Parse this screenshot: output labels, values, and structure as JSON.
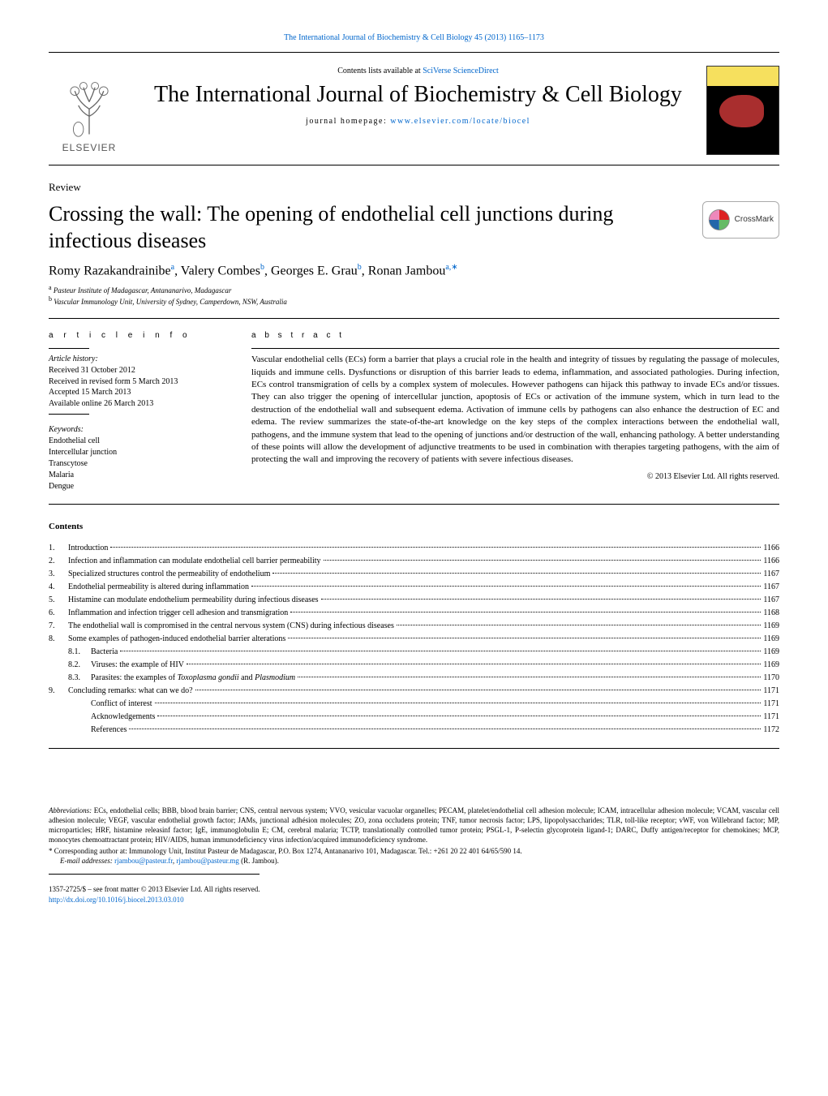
{
  "header": {
    "running_head": "The International Journal of Biochemistry & Cell Biology 45 (2013) 1165–1173",
    "contents_line_prefix": "Contents lists available at ",
    "contents_line_link": "SciVerse ScienceDirect",
    "journal_title": "The International Journal of Biochemistry & Cell Biology",
    "homepage_prefix": "journal homepage: ",
    "homepage_url": "www.elsevier.com/locate/biocel",
    "publisher_name": "ELSEVIER"
  },
  "crossmark": {
    "label": "CrossMark"
  },
  "article": {
    "type": "Review",
    "title": "Crossing the wall: The opening of endothelial cell junctions during infectious diseases",
    "authors_html": "Romy Razakandrainibe<sup>a</sup>, Valery Combes<sup>b</sup>, Georges E. Grau<sup>b</sup>, Ronan Jambou<sup>a,*</sup>",
    "authors": [
      {
        "name": "Romy Razakandrainibe",
        "aff": "a"
      },
      {
        "name": "Valery Combes",
        "aff": "b"
      },
      {
        "name": "Georges E. Grau",
        "aff": "b"
      },
      {
        "name": "Ronan Jambou",
        "aff": "a,*"
      }
    ],
    "affiliations": [
      {
        "mark": "a",
        "text": "Pasteur Institute of Madagascar, Antananarivo, Madagascar"
      },
      {
        "mark": "b",
        "text": "Vascular Immunology Unit, University of Sydney, Camperdown, NSW, Australia"
      }
    ]
  },
  "info": {
    "heading": "a r t i c l e   i n f o",
    "history_label": "Article history:",
    "history": [
      "Received 31 October 2012",
      "Received in revised form 5 March 2013",
      "Accepted 15 March 2013",
      "Available online 26 March 2013"
    ],
    "keywords_label": "Keywords:",
    "keywords": [
      "Endothelial cell",
      "Intercellular junction",
      "Transcytose",
      "Malaria",
      "Dengue"
    ]
  },
  "abstract": {
    "heading": "a b s t r a c t",
    "text": "Vascular endothelial cells (ECs) form a barrier that plays a crucial role in the health and integrity of tissues by regulating the passage of molecules, liquids and immune cells. Dysfunctions or disruption of this barrier leads to edema, inflammation, and associated pathologies. During infection, ECs control transmigration of cells by a complex system of molecules. However pathogens can hijack this pathway to invade ECs and/or tissues. They can also trigger the opening of intercellular junction, apoptosis of ECs or activation of the immune system, which in turn lead to the destruction of the endothelial wall and subsequent edema. Activation of immune cells by pathogens can also enhance the destruction of EC and edema. The review summarizes the state-of-the-art knowledge on the key steps of the complex interactions between the endothelial wall, pathogens, and the immune system that lead to the opening of junctions and/or destruction of the wall, enhancing pathology. A better understanding of these points will allow the development of adjunctive treatments to be used in combination with therapies targeting pathogens, with the aim of protecting the wall and improving the recovery of patients with severe infectious diseases.",
    "copyright": "© 2013 Elsevier Ltd. All rights reserved."
  },
  "contents": {
    "heading": "Contents",
    "items": [
      {
        "num": "1.",
        "title": "Introduction",
        "page": "1166"
      },
      {
        "num": "2.",
        "title": "Infection and inflammation can modulate endothelial cell barrier permeability",
        "page": "1166"
      },
      {
        "num": "3.",
        "title": "Specialized structures control the permeability of endothelium",
        "page": "1167"
      },
      {
        "num": "4.",
        "title": "Endothelial permeability is altered during inflammation",
        "page": "1167"
      },
      {
        "num": "5.",
        "title": "Histamine can modulate endothelium permeability during infectious diseases",
        "page": "1167"
      },
      {
        "num": "6.",
        "title": "Inflammation and infection trigger cell adhesion and transmigration",
        "page": "1168"
      },
      {
        "num": "7.",
        "title": "The endothelial wall is compromised in the central nervous system (CNS) during infectious diseases",
        "page": "1169"
      },
      {
        "num": "8.",
        "title": "Some examples of pathogen-induced endothelial barrier alterations",
        "page": "1169"
      },
      {
        "num": "8.1.",
        "title": "Bacteria",
        "page": "1169",
        "indent": 1
      },
      {
        "num": "8.2.",
        "title": "Viruses: the example of HIV",
        "page": "1169",
        "indent": 1
      },
      {
        "num": "8.3.",
        "title": "Parasites: the examples of <span class=\"ital\">Toxoplasma gondii</span> and <span class=\"ital\">Plasmodium</span>",
        "page": "1170",
        "indent": 1
      },
      {
        "num": "9.",
        "title": "Concluding remarks: what can we do?",
        "page": "1171"
      },
      {
        "num": "",
        "title": "Conflict of interest",
        "page": "1171",
        "indent": 1
      },
      {
        "num": "",
        "title": "Acknowledgements",
        "page": "1171",
        "indent": 1
      },
      {
        "num": "",
        "title": "References",
        "page": "1172",
        "indent": 1
      }
    ]
  },
  "footnotes": {
    "abbr_label": "Abbreviations:",
    "abbr_text": " ECs, endothelial cells; BBB, blood brain barrier; CNS, central nervous system; VVO, vesicular vacuolar organelles; PECAM, platelet/endothelial cell adhesion molecule; ICAM, intracellular adhesion molecule; VCAM, vascular cell adhesion molecule; VEGF, vascular endothelial growth factor; JAMs, junctional adhésion molecules; ZO, zona occludens protein; TNF, tumor necrosis factor; LPS, lipopolysaccharides; TLR, toll-like receptor; vWF, von Willebrand factor; MP, microparticles; HRF, histamine releasinf factor; IgE, immunoglobulin E; CM, cerebral malaria; TCTP, translationally controlled tumor protein; PSGL-1, P-selectin glycoprotein ligand-1; DARC, Duffy antigen/receptor for chemokines; MCP, monocytes chemoattractant protein; HIV/AIDS, human immunodeficiency virus infection/acquired immunodeficiency syndrome.",
    "corr_prefix": "* Corresponding author at: Immunology Unit, Institut Pasteur de Madagascar, P.O. Box 1274, Antananarivo 101, Madagascar. Tel.: +261 20 22 401 64/65/590 14.",
    "email_label": "E-mail addresses:",
    "emails": [
      "rjambou@pasteur.fr",
      "rjambou@pasteur.mg"
    ],
    "email_suffix": " (R. Jambou)."
  },
  "frontmatter": {
    "issn_line": "1357-2725/$ – see front matter © 2013 Elsevier Ltd. All rights reserved.",
    "doi": "http://dx.doi.org/10.1016/j.biocel.2013.03.010"
  },
  "colors": {
    "link": "#0066cc",
    "text": "#000000",
    "rule": "#000000",
    "background": "#ffffff"
  },
  "typography": {
    "body_pt": 11,
    "title_pt": 26,
    "journal_title_pt": 28,
    "small_pt": 10,
    "footnote_pt": 9
  }
}
